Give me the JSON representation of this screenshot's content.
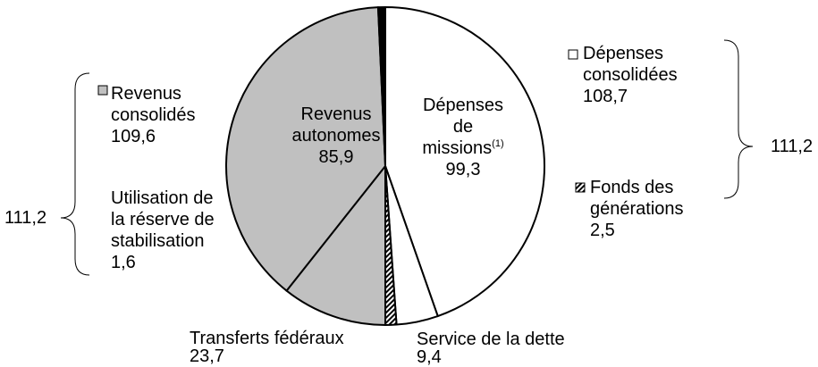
{
  "chart_data": {
    "type": "pie",
    "categories": [
      "Dépenses de missions",
      "Service de la dette",
      "Fonds des générations",
      "Transferts fédéraux",
      "Revenus autonomes",
      "Utilisation de la réserve de stabilisation"
    ],
    "values": [
      99.3,
      9.4,
      2.5,
      23.7,
      85.9,
      1.6
    ],
    "value_labels": [
      "99,3",
      "9,4",
      "2,5",
      "23,7",
      "85,9",
      "1,6"
    ],
    "colors": [
      "#ffffff",
      "#ffffff",
      "hatch",
      "#c0c0c0",
      "#c0c0c0",
      "#000000"
    ],
    "superscript": "(1)",
    "groups": [
      {
        "name": "Revenus consolidés",
        "value": 109.6,
        "value_label": "109,6",
        "total": 111.2,
        "total_label": "111,2"
      },
      {
        "name": "Dépenses consolidées",
        "value": 108.7,
        "value_label": "108,7",
        "total": 111.2,
        "total_label": "111,2"
      }
    ]
  }
}
